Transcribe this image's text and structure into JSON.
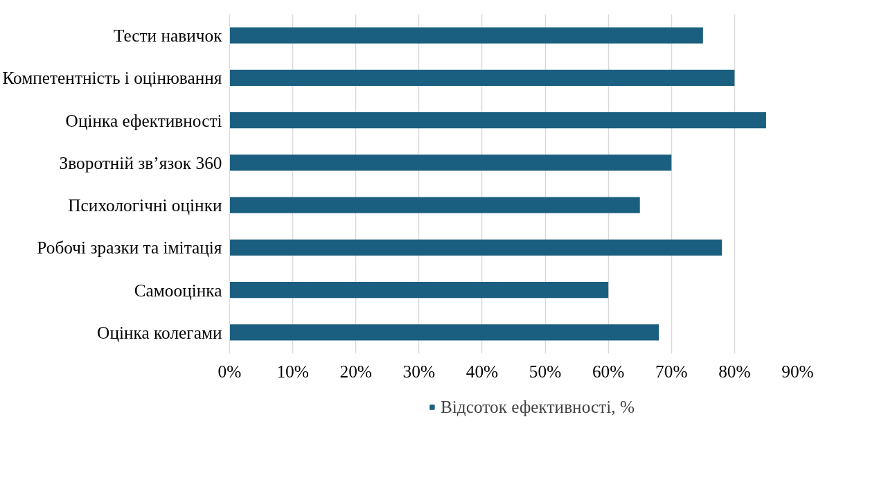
{
  "chart_data": {
    "type": "bar",
    "orientation": "horizontal",
    "categories": [
      "Тести навичок",
      "Компетентність і оцінювання",
      "Оцінка ефективності",
      "Зворотній зв’язок 360",
      "Психологічні оцінки",
      "Робочі зразки та імітація",
      "Самооцінка",
      "Оцінка колегами"
    ],
    "series": [
      {
        "name": "Відсоток ефективності, %",
        "color": "#1b5f80",
        "values": [
          75,
          80,
          85,
          70,
          65,
          78,
          60,
          68
        ]
      }
    ],
    "xlim": [
      0,
      90
    ],
    "xticks": [
      {
        "value": 0,
        "label": "0%"
      },
      {
        "value": 10,
        "label": "10%"
      },
      {
        "value": 20,
        "label": "20%"
      },
      {
        "value": 30,
        "label": "30%"
      },
      {
        "value": 40,
        "label": "40%"
      },
      {
        "value": 50,
        "label": "50%"
      },
      {
        "value": 60,
        "label": "60%"
      },
      {
        "value": 70,
        "label": "70%"
      },
      {
        "value": 80,
        "label": "80%"
      },
      {
        "value": 90,
        "label": "90%"
      }
    ],
    "grid": "x",
    "legend": "bottom"
  }
}
